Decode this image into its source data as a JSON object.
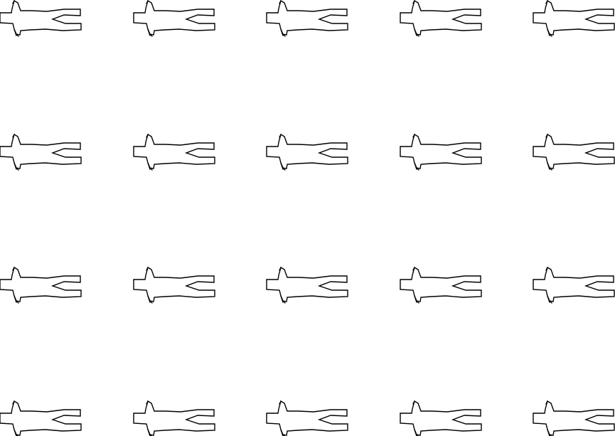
{
  "pattern": {
    "motif": "figure-outline-icon",
    "rows": 4,
    "columns": 5,
    "total": 20,
    "background_color": "#ffffff",
    "stroke_color": "#000000"
  }
}
